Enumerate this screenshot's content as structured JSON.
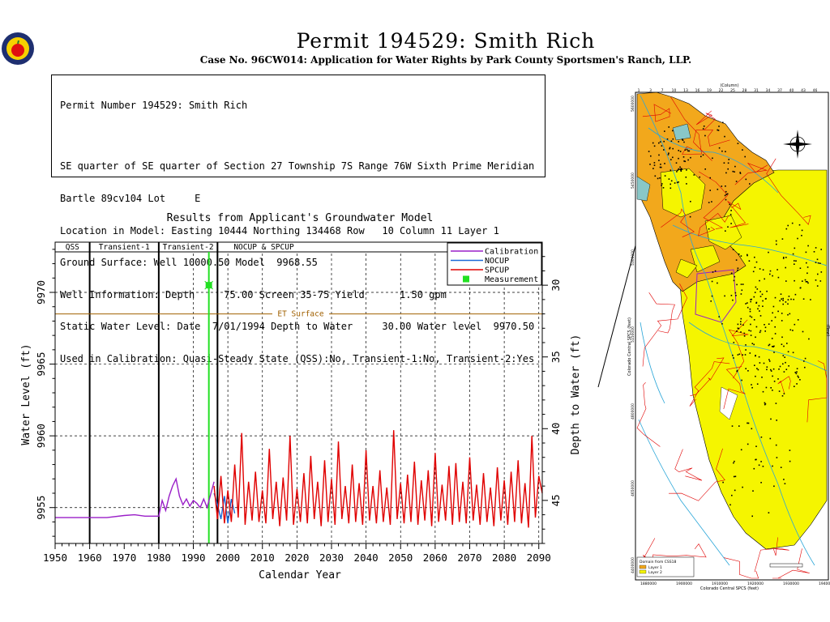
{
  "header": {
    "title": "Permit  194529:   Smith Rich",
    "subtitle": "Case No. 96CW014: Application for Water Rights by Park County Sportsmen's Ranch, LLP."
  },
  "info": {
    "lines": [
      "Permit Number 194529: Smith Rich",
      "SE quarter of SE quarter of Section 27 Township 7S Range 76W Sixth Prime Meridian",
      "Bartle 89cv104 Lot     E",
      "Location in Model: Easting 10444 Northing 134468 Row   10 Column 11 Layer 1",
      "Ground Surface: Well 10000.50 Model  9968.55",
      "Well Information: Depth     75.00 Screen 35-75 Yield      1.50 gpm",
      "Static Water Level: Date  7/01/1994 Depth to Water     30.00 Water level  9970.50",
      "Used in Calibration: Quasi-Steady State (QSS):No, Transient-1:No, Transient-2:Yes"
    ]
  },
  "chart_data": {
    "type": "line",
    "title": "Results from Applicant's Groundwater Model",
    "xlabel": "Calendar Year",
    "ylabel": "Water Level (ft)",
    "y2label": "Depth to Water (ft)",
    "xlim": [
      1950,
      2091
    ],
    "ylim": [
      9952.5,
      9973.5
    ],
    "xticks": [
      1950,
      1960,
      1970,
      1980,
      1990,
      2000,
      2010,
      2020,
      2030,
      2040,
      2050,
      2060,
      2070,
      2080,
      2090
    ],
    "yticks": [
      9955,
      9960,
      9965,
      9970
    ],
    "y2ticks": [
      30,
      35,
      40,
      45
    ],
    "ground_surface": 10000.5,
    "periods": [
      {
        "label": "QSS",
        "start": 1950,
        "end": 1960
      },
      {
        "label": "Transient-1",
        "start": 1960,
        "end": 1980
      },
      {
        "label": "Transient-2",
        "start": 1980,
        "end": 1997
      },
      {
        "label": "NOCUP  &  SPCUP",
        "start": 1997,
        "end": 2091
      }
    ],
    "et_surface": {
      "label": "ET Surface",
      "value": 9968.5,
      "color": "#a06000"
    },
    "legend": {
      "position": "top-right",
      "entries": [
        "Calibration",
        "NOCUP",
        "SPCUP",
        "Measurement"
      ]
    },
    "measurement_line_x": 1994.5,
    "series": [
      {
        "name": "Calibration",
        "color": "#9a1fc8",
        "x": [
          1950,
          1965,
          1970,
          1973,
          1976,
          1980,
          1981,
          1982,
          1983,
          1984,
          1985,
          1986,
          1987,
          1988,
          1989,
          1990,
          1991,
          1992,
          1993,
          1994,
          1995,
          1996
        ],
        "y": [
          9954.3,
          9954.3,
          9954.45,
          9954.5,
          9954.4,
          9954.4,
          9955.5,
          9954.8,
          9955.8,
          9956.5,
          9957.0,
          9955.8,
          9955.2,
          9955.6,
          9955.1,
          9955.5,
          9955.3,
          9955.0,
          9955.6,
          9955.0,
          9955.9,
          9956.8
        ]
      },
      {
        "name": "NOCUP",
        "color": "#1c6ad8",
        "x": [
          1996,
          1997,
          1998,
          1999,
          2000,
          2001,
          2002
        ],
        "y": [
          9956.0,
          9955.2,
          9954.2,
          9955.8,
          9953.9,
          9955.6,
          9954.6
        ]
      },
      {
        "name": "SPCUP",
        "color": "#e00000",
        "x": [
          1996,
          1997,
          1998,
          1999,
          2000,
          2001,
          2002,
          2003,
          2004,
          2005,
          2006,
          2007,
          2008,
          2009,
          2010,
          2011,
          2012,
          2013,
          2014,
          2015,
          2016,
          2017,
          2018,
          2019,
          2020,
          2021,
          2022,
          2023,
          2024,
          2025,
          2026,
          2027,
          2028,
          2029,
          2030,
          2031,
          2032,
          2033,
          2034,
          2035,
          2036,
          2037,
          2038,
          2039,
          2040,
          2041,
          2042,
          2043,
          2044,
          2045,
          2046,
          2047,
          2048,
          2049,
          2050,
          2051,
          2052,
          2053,
          2054,
          2055,
          2056,
          2057,
          2058,
          2059,
          2060,
          2061,
          2062,
          2063,
          2064,
          2065,
          2066,
          2067,
          2068,
          2069,
          2070,
          2071,
          2072,
          2073,
          2074,
          2075,
          2076,
          2077,
          2078,
          2079,
          2080,
          2081,
          2082,
          2083,
          2084,
          2085,
          2086,
          2087,
          2088,
          2089,
          2090,
          2091
        ],
        "y": [
          9956.5,
          9954.2,
          9957.2,
          9953.9,
          9956.2,
          9954.0,
          9958.0,
          9954.3,
          9960.2,
          9953.8,
          9956.8,
          9954.1,
          9957.5,
          9954.0,
          9956.2,
          9953.9,
          9959.1,
          9954.2,
          9956.8,
          9953.7,
          9957.1,
          9954.1,
          9960.0,
          9953.8,
          9956.3,
          9954.0,
          9957.4,
          9953.9,
          9958.6,
          9954.2,
          9956.8,
          9953.7,
          9958.3,
          9954.0,
          9957.0,
          9953.8,
          9959.6,
          9954.2,
          9956.5,
          9953.9,
          9958.0,
          9954.0,
          9956.7,
          9953.8,
          9959.0,
          9954.1,
          9956.5,
          9953.9,
          9957.6,
          9954.0,
          9956.4,
          9953.8,
          9960.4,
          9954.2,
          9956.7,
          9953.9,
          9957.3,
          9954.0,
          9958.2,
          9953.8,
          9956.9,
          9954.1,
          9957.6,
          9953.7,
          9958.8,
          9954.0,
          9956.6,
          9954.1,
          9957.9,
          9953.8,
          9958.1,
          9954.0,
          9956.8,
          9953.9,
          9958.5,
          9954.1,
          9956.6,
          9953.8,
          9957.4,
          9954.0,
          9956.4,
          9953.7,
          9957.8,
          9954.1,
          9956.9,
          9953.8,
          9957.5,
          9954.0,
          9958.3,
          9953.9,
          9956.7,
          9953.6,
          9960.0,
          9954.3,
          9957.2,
          9956.0
        ]
      }
    ],
    "measurements": [
      {
        "x": 1994.5,
        "y": 9970.5
      }
    ]
  },
  "map": {
    "column_label": "(Column)",
    "row_label": "(Row)",
    "crs_label": "Colorado Central SPCS (feet)",
    "legend_title": "Domain from CSS18",
    "legend_items": [
      "Layer 1",
      "Layer 2"
    ],
    "top_ticks": [
      "1",
      "3",
      "7",
      "10",
      "13",
      "16",
      "19",
      "22",
      "25",
      "28",
      "31",
      "34",
      "37",
      "40",
      "43",
      "46"
    ],
    "bottom_ticks": [
      "1880000",
      "1900000",
      "1910000",
      "1920000",
      "1930000",
      "1940000"
    ],
    "left_ticks": [
      "5600000",
      "5450000",
      "5300000",
      "5150000",
      "4800000",
      "4650000",
      "4400000"
    ],
    "colors": {
      "layer1": "#f2a81c",
      "layer2": "#f5f500",
      "roads": "#e00000",
      "rivers": "#2aa6d8"
    }
  }
}
